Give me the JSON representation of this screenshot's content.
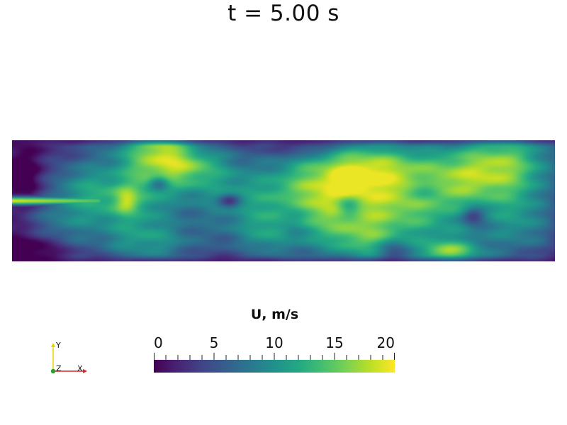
{
  "time_label": "t = 5.00 s",
  "field": {
    "name": "velocity-magnitude-field",
    "colormap": "viridis"
  },
  "colorbar": {
    "title": "U, m/s",
    "min": 0,
    "max": 20,
    "major_ticks": [
      0,
      5,
      10,
      15,
      20
    ],
    "major_tick_labels": [
      "0",
      "5",
      "10",
      "15",
      "20"
    ],
    "minor_step": 1,
    "colors": [
      "#440154",
      "#482475",
      "#414487",
      "#355f8d",
      "#2a788e",
      "#21918c",
      "#22a884",
      "#44bf70",
      "#7ad151",
      "#bddf26",
      "#fde725"
    ]
  },
  "orientation_axes": {
    "x_label": "X",
    "y_label": "Y",
    "z_label": "Z",
    "x_color": "#d62728",
    "y_color": "#e8d400",
    "z_color": "#2ca02c"
  }
}
